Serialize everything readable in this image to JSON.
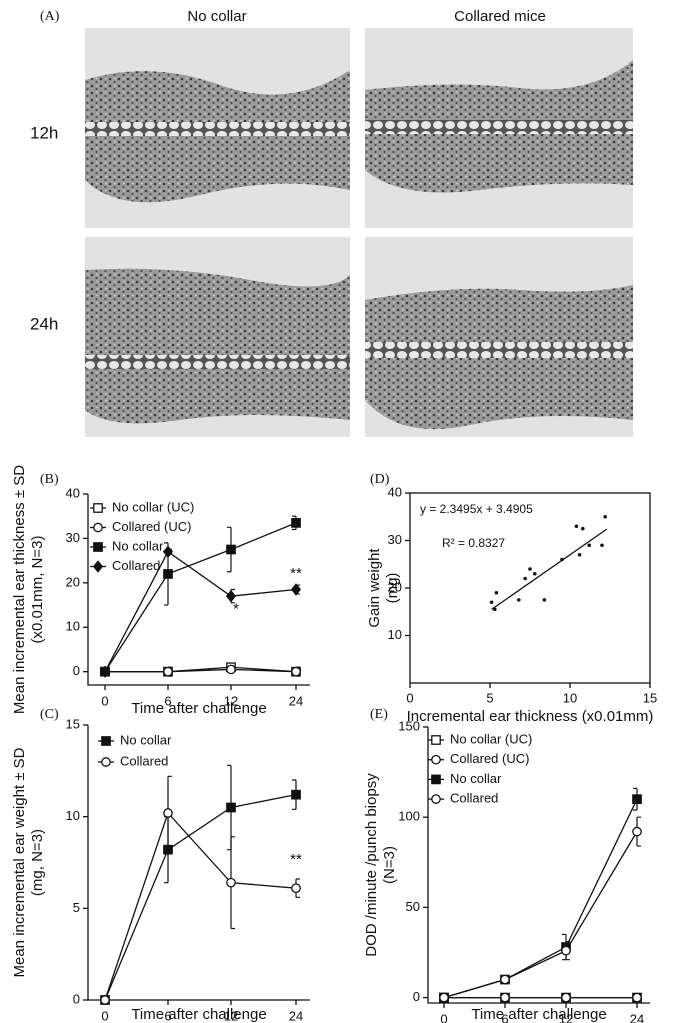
{
  "panel_a": {
    "label": "(A)",
    "columns": [
      "No collar",
      "Collared mice"
    ],
    "rows": [
      "12h",
      "24h"
    ]
  },
  "chart_data": [
    {
      "type": "line",
      "label": "(B)",
      "xlabel": "Time after challenge",
      "ylabel": [
        "Mean incremental ear thickness ± SD",
        "(x0.01mm, N=3)"
      ],
      "categories": [
        "0",
        "6",
        "12",
        "24"
      ],
      "ylim": [
        -3,
        40
      ],
      "yticks": [
        0,
        10,
        20,
        30,
        40
      ],
      "legend": "upper left",
      "series": [
        {
          "name": "No collar (UC)",
          "color": "#111111",
          "marker": "open-square",
          "values": [
            0,
            0,
            1,
            0
          ],
          "errors": [
            0.3,
            0.5,
            0.5,
            0.8
          ]
        },
        {
          "name": "Collared (UC)",
          "color": "#111111",
          "marker": "open-circle",
          "values": [
            0,
            0,
            0.5,
            0
          ],
          "errors": [
            0.3,
            1,
            0.5,
            1
          ]
        },
        {
          "name": "No collar",
          "color": "#111111",
          "marker": "filled-square",
          "values": [
            0,
            22,
            27.5,
            33.5
          ],
          "errors": [
            0,
            7,
            5,
            1.5
          ]
        },
        {
          "name": "Collared",
          "color": "#111111",
          "marker": "filled-diamond",
          "values": [
            0,
            27,
            17,
            18.5
          ],
          "errors": [
            0,
            0.5,
            1.5,
            1
          ]
        }
      ],
      "annotations": [
        "*",
        "**"
      ]
    },
    {
      "type": "scatter",
      "label": "(D)",
      "xlabel": "Incremental ear thickness (x0.01mm)",
      "ylabel": [
        "Gain weight",
        "(mg)"
      ],
      "xlim": [
        0,
        15
      ],
      "xticks": [
        0,
        5,
        10,
        15
      ],
      "ylim": [
        0,
        40
      ],
      "yticks": [
        10,
        20,
        30,
        40
      ],
      "color": "#111111",
      "x": [
        5.1,
        5.3,
        5.4,
        6.8,
        7.2,
        7.5,
        7.8,
        8.4,
        9.5,
        10.4,
        10.6,
        10.8,
        11.2,
        12.0,
        12.2
      ],
      "values": [
        17,
        15.5,
        19,
        17.5,
        22,
        24,
        23,
        17.5,
        26,
        33,
        27,
        32.5,
        29,
        29,
        35
      ],
      "trendline": {
        "x": [
          5.1,
          12.3
        ],
        "y": [
          15.5,
          32.4
        ]
      },
      "annotations": [
        "y = 2.3495x + 3.4905",
        "R² = 0.8327"
      ]
    },
    {
      "type": "line",
      "label": "(C)",
      "xlabel": "Time after challenge",
      "ylabel": [
        "Mean incremental ear weight ± SD",
        "(mg, N=3)"
      ],
      "categories": [
        "0",
        "6",
        "12",
        "24"
      ],
      "ylim": [
        0,
        15
      ],
      "yticks": [
        0,
        5,
        10,
        15
      ],
      "legend": "upper left",
      "series": [
        {
          "name": "No collar",
          "color": "#111111",
          "marker": "filled-square",
          "values": [
            0,
            8.2,
            10.5,
            11.2
          ],
          "errors": [
            0,
            1.8,
            2.3,
            0.8
          ]
        },
        {
          "name": "Collared",
          "color": "#111111",
          "marker": "open-circle",
          "values": [
            0,
            10.2,
            6.4,
            6.1
          ],
          "errors": [
            0,
            2,
            2.5,
            0.5
          ]
        }
      ],
      "annotations": [
        "**"
      ]
    },
    {
      "type": "line",
      "label": "(E)",
      "xlabel": "Time after challenge",
      "ylabel": [
        "DOD /minute /punch biopsy",
        "(N=3)"
      ],
      "categories": [
        "0",
        "6",
        "12",
        "24"
      ],
      "ylim": [
        -3,
        150
      ],
      "yticks": [
        0,
        50,
        100,
        150
      ],
      "legend": "upper left",
      "series": [
        {
          "name": "No collar (UC)",
          "color": "#111111",
          "marker": "open-square",
          "values": [
            0,
            0,
            0,
            0
          ],
          "errors": [
            0.5,
            0.5,
            0.5,
            0.5
          ]
        },
        {
          "name": "Collared (UC)",
          "color": "#111111",
          "marker": "open-circle",
          "values": [
            0,
            0,
            0,
            0
          ],
          "errors": [
            0.5,
            0.5,
            0.5,
            0.5
          ]
        },
        {
          "name": "No collar",
          "color": "#111111",
          "marker": "filled-square",
          "values": [
            0,
            10,
            28,
            110
          ],
          "errors": [
            0,
            1,
            7,
            6
          ]
        },
        {
          "name": "Collared",
          "color": "#111111",
          "marker": "open-circle",
          "values": [
            0,
            10,
            26,
            92
          ],
          "errors": [
            0,
            1,
            5,
            8
          ]
        }
      ]
    }
  ]
}
